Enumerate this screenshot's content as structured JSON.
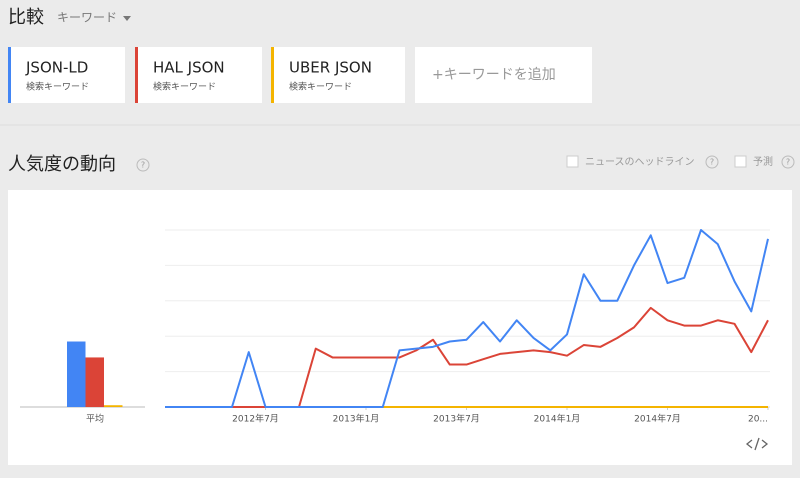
{
  "header": {
    "title": "比較",
    "mode": "キーワード"
  },
  "keywords": [
    {
      "name": "JSON-LD",
      "kind": "検索キーワード",
      "color": "#4285f4"
    },
    {
      "name": "HAL JSON",
      "kind": "検索キーワード",
      "color": "#db4437"
    },
    {
      "name": "UBER JSON",
      "kind": "検索キーワード",
      "color": "#f4b400"
    }
  ],
  "add_keyword": "+キーワードを追加",
  "section": {
    "title": "人気度の動向",
    "help": "?",
    "options": [
      "ニュースのヘッドライン",
      "予測"
    ]
  },
  "chart_data": {
    "type": "line",
    "average_label": "平均",
    "x": [
      "2012-01",
      "2012-02",
      "2012-03",
      "2012-04",
      "2012-05",
      "2012-06",
      "2012-07",
      "2012-08",
      "2012-09",
      "2012-10",
      "2012-11",
      "2012-12",
      "2013-01",
      "2013-02",
      "2013-03",
      "2013-04",
      "2013-05",
      "2013-06",
      "2013-07",
      "2013-08",
      "2013-09",
      "2013-10",
      "2013-11",
      "2013-12",
      "2014-01",
      "2014-02",
      "2014-03",
      "2014-04",
      "2014-05",
      "2014-06",
      "2014-07",
      "2014-08",
      "2014-09",
      "2014-10",
      "2014-11",
      "2014-12",
      "2015-01"
    ],
    "xticks": [
      {
        "value": "2012-07",
        "label": "2012年7月"
      },
      {
        "value": "2013-01",
        "label": "2013年1月"
      },
      {
        "value": "2013-07",
        "label": "2013年7月"
      },
      {
        "value": "2014-01",
        "label": "2014年1月"
      },
      {
        "value": "2014-07",
        "label": "2014年7月"
      },
      {
        "value": "2015-01",
        "label": "20..."
      }
    ],
    "ylim": [
      0,
      100
    ],
    "yticks": [
      0,
      20,
      40,
      60,
      80,
      100
    ],
    "grid": true,
    "series": [
      {
        "name": "JSON-LD",
        "color": "#4285f4",
        "average": 37,
        "values": [
          0,
          0,
          0,
          0,
          0,
          31,
          0,
          0,
          0,
          0,
          0,
          0,
          0,
          0,
          32,
          33,
          34,
          37,
          38,
          48,
          37,
          49,
          39,
          32,
          41,
          75,
          60,
          60,
          80,
          97,
          70,
          73,
          100,
          92,
          71,
          54,
          95
        ]
      },
      {
        "name": "HAL JSON",
        "color": "#db4437",
        "average": 28,
        "values": [
          0,
          0,
          0,
          0,
          0,
          0,
          0,
          0,
          0,
          33,
          28,
          28,
          28,
          28,
          28,
          32,
          38,
          24,
          24,
          27,
          30,
          31,
          32,
          31,
          29,
          35,
          34,
          39,
          45,
          56,
          49,
          46,
          46,
          49,
          47,
          31,
          49
        ]
      },
      {
        "name": "UBER JSON",
        "color": "#f4b400",
        "average": 1,
        "values": [
          0,
          0,
          0,
          0,
          0,
          0,
          0,
          0,
          0,
          0,
          0,
          0,
          0,
          0,
          0,
          0,
          0,
          0,
          0,
          0,
          0,
          0,
          0,
          0,
          0,
          0,
          0,
          0,
          0,
          0,
          0,
          0,
          0,
          0,
          0,
          0,
          0
        ]
      }
    ]
  }
}
